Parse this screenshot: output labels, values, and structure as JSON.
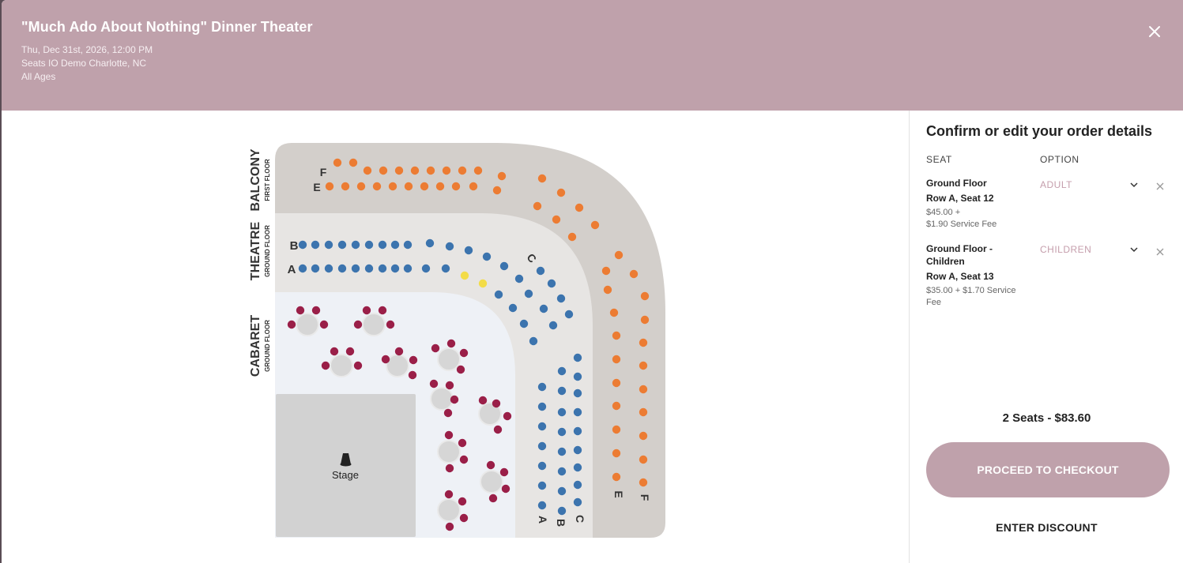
{
  "event": {
    "title": "\"Much Ado About Nothing\" Dinner Theater",
    "date": "Thu, Dec 31st, 2026, 12:00 PM",
    "venue": "Seats IO Demo Charlotte, NC",
    "age": "All Ages",
    "close_icon": "close-icon"
  },
  "map": {
    "sections": {
      "balcony": {
        "title": "BALCONY",
        "sub": "FIRST FLOOR"
      },
      "theatre": {
        "title": "THEATRE",
        "sub": "GROUND FLOOR"
      },
      "cabaret": {
        "title": "CABARET",
        "sub": "GROUND FLOOR"
      }
    },
    "row_labels": {
      "balcony_f": "F",
      "balcony_e": "E",
      "theatre_b": "B",
      "theatre_a": "A",
      "theatre_c": "C",
      "bottom_a": "A",
      "bottom_b": "B",
      "bottom_c": "C",
      "bottom_e": "E",
      "bottom_f": "F"
    },
    "stage_label": "Stage",
    "colors": {
      "balcony_seat": "#ec7c33",
      "theatre_seat": "#3c74ae",
      "cabaret_seat": "#9a1f48",
      "selected_seat": "#f3dc48",
      "table": "#d6d6d6",
      "stage": "#d2d2d2",
      "balcony_bg": "#d3cfcb",
      "theatre_bg": "#e7e5e3",
      "cabaret_bg": "#eef1f6"
    }
  },
  "order": {
    "title": "Confirm or edit your order details",
    "col_seat": "SEAT",
    "col_option": "OPTION",
    "items": [
      {
        "section": "Ground Floor",
        "seat": "Row A, Seat 12",
        "price_line1": "$45.00 +",
        "price_line2": "$1.90 Service Fee",
        "option": "ADULT"
      },
      {
        "section": "Ground Floor -",
        "section2": "Children",
        "seat": "Row A, Seat 13",
        "price_line1": "$35.00 + $1.70 Service",
        "price_line2": "Fee",
        "option": "CHILDREN"
      }
    ],
    "summary": "2 Seats - $83.60",
    "checkout_label": "PROCEED TO CHECKOUT",
    "discount_label": "ENTER DISCOUNT"
  }
}
